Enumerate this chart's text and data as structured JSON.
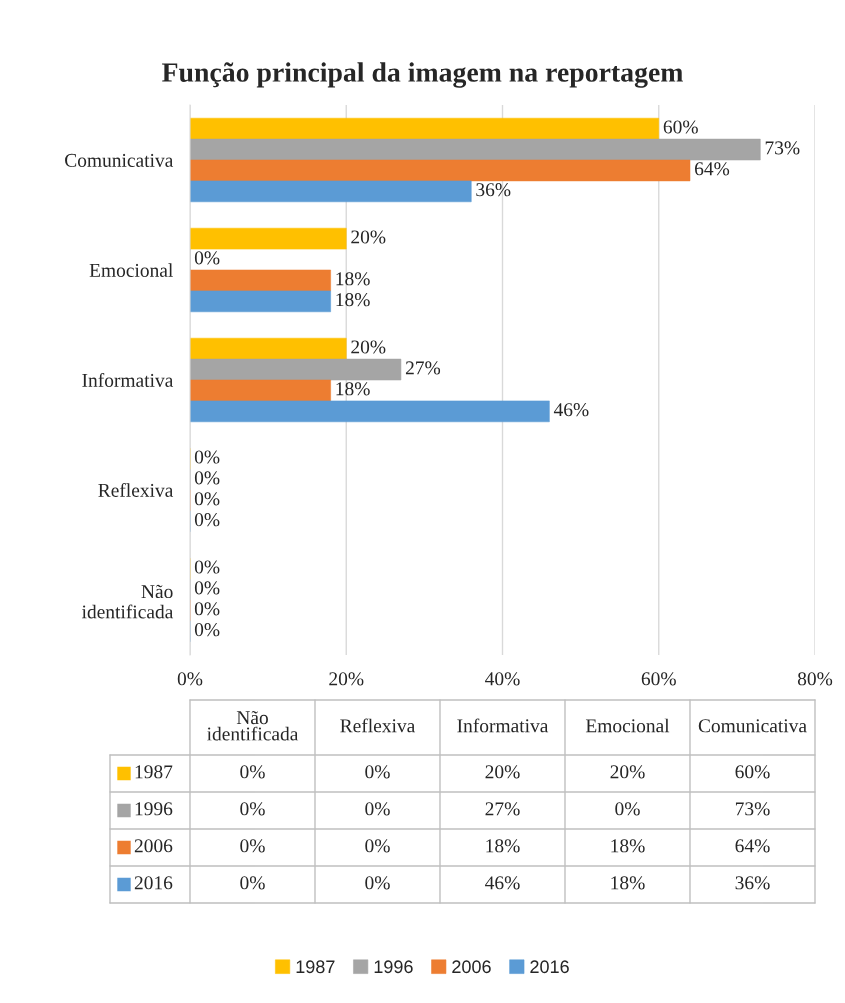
{
  "chart_data": {
    "type": "bar",
    "orientation": "horizontal",
    "title": "Função principal da imagem na reportagem",
    "categories": [
      "Comunicativa",
      "Emocional",
      "Informativa",
      "Reflexiva",
      "Não identificada"
    ],
    "series": [
      {
        "name": "1987",
        "color": "#ffc000",
        "values": [
          60,
          20,
          20,
          0,
          0
        ],
        "value_labels": [
          "60%",
          "20%",
          "20%",
          "0%",
          "0%"
        ]
      },
      {
        "name": "1996",
        "color": "#a5a5a5",
        "values": [
          73,
          0,
          27,
          0,
          0
        ],
        "value_labels": [
          "73%",
          "0%",
          "27%",
          "0%",
          "0%"
        ]
      },
      {
        "name": "2006",
        "color": "#ed7d31",
        "values": [
          64,
          18,
          18,
          0,
          0
        ],
        "value_labels": [
          "64%",
          "18%",
          "18%",
          "0%",
          "0%"
        ]
      },
      {
        "name": "2016",
        "color": "#5b9bd5",
        "values": [
          36,
          18,
          46,
          0,
          0
        ],
        "value_labels": [
          "36%",
          "18%",
          "46%",
          "0%",
          "0%"
        ]
      }
    ],
    "xlim": [
      0,
      80
    ],
    "xticks": [
      {
        "value": 0,
        "label": "0%"
      },
      {
        "value": 20,
        "label": "20%"
      },
      {
        "value": 40,
        "label": "40%"
      },
      {
        "value": 60,
        "label": "60%"
      },
      {
        "value": 80,
        "label": "80%"
      }
    ],
    "grid": "x",
    "legend": "bottom"
  }
}
